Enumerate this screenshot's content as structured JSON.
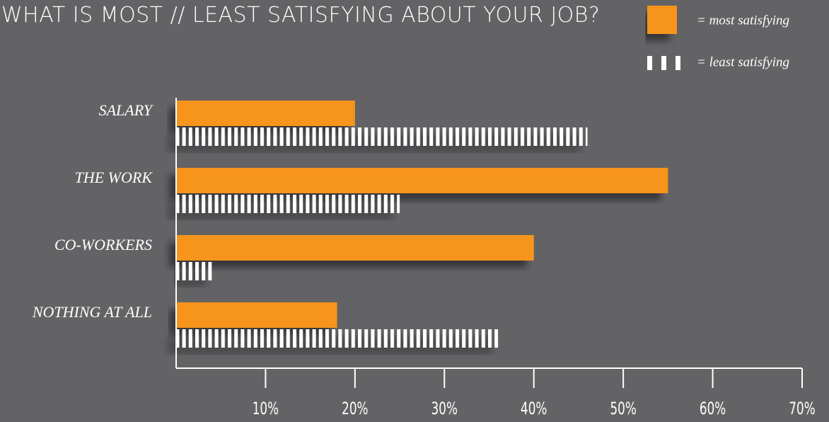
{
  "chart_data": {
    "type": "hbar",
    "title": "WHAT IS MOST // LEAST SATISFYING ABOUT YOUR JOB?",
    "categories": [
      "SALARY",
      "THE WORK",
      "CO-WORKERS",
      "NOTHING AT ALL"
    ],
    "series": [
      {
        "name": "= most satisfying",
        "color": "#f7941d",
        "values": [
          20,
          55,
          40,
          18
        ]
      },
      {
        "name": "= least satisfying",
        "color": "#ffffff",
        "values": [
          46,
          25,
          4,
          36
        ]
      }
    ],
    "xlim": [
      0,
      70
    ],
    "xticks": [
      {
        "value": 10,
        "label": "10%"
      },
      {
        "value": 20,
        "label": "20%"
      },
      {
        "value": 30,
        "label": "30%"
      },
      {
        "value": 40,
        "label": "40%"
      },
      {
        "value": 50,
        "label": "50%"
      },
      {
        "value": 60,
        "label": "60%"
      },
      {
        "value": 70,
        "label": "70%"
      }
    ],
    "legend": "top-right"
  }
}
